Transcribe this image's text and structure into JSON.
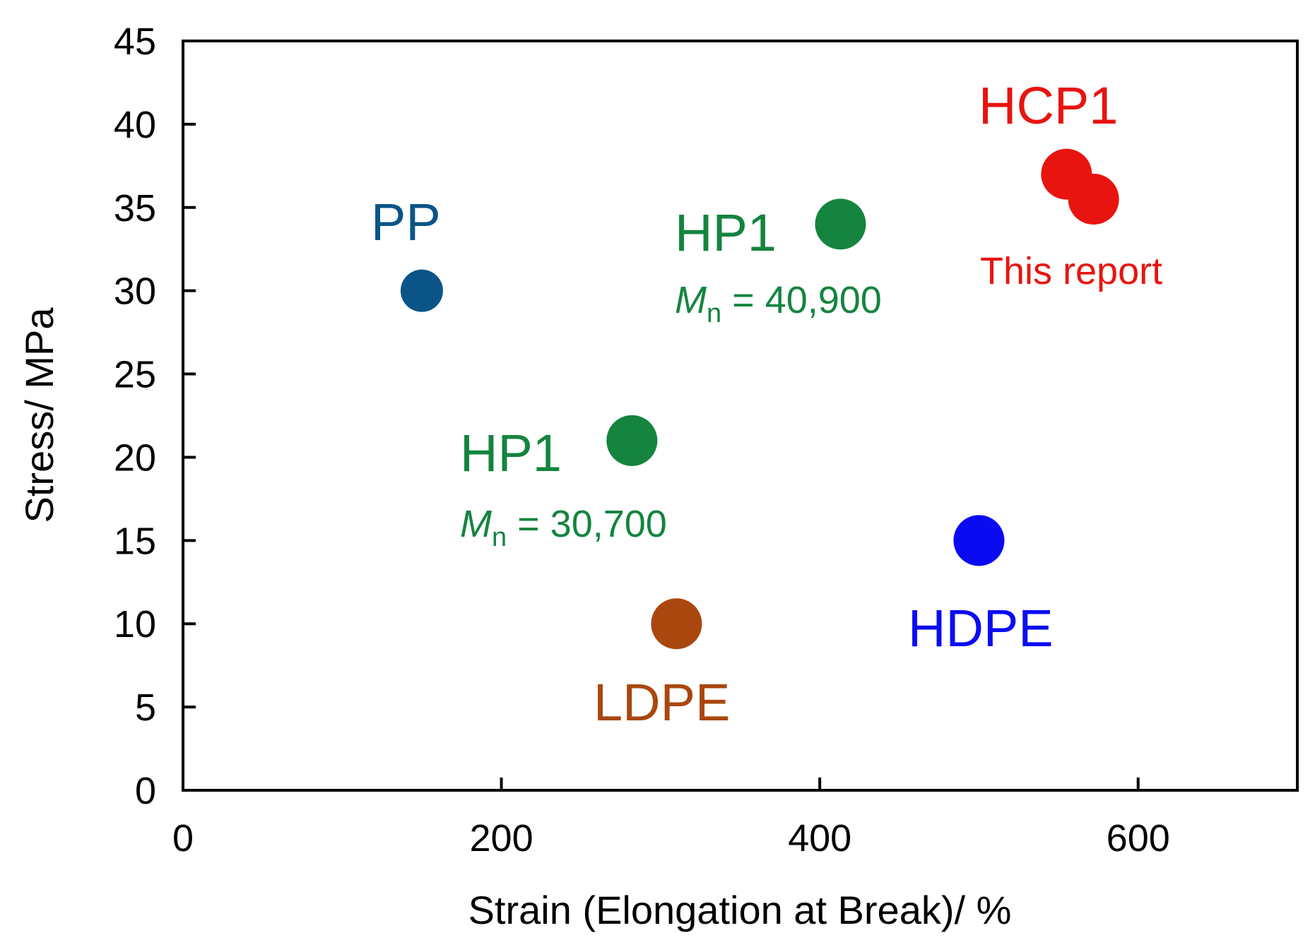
{
  "chart_data": {
    "type": "scatter",
    "title": "",
    "xlabel": "Strain (Elongation at Break)/ %",
    "ylabel": "Stress/ MPa",
    "xlim": [
      0,
      700
    ],
    "ylim": [
      0,
      45
    ],
    "xticks": [
      0,
      200,
      400,
      600
    ],
    "yticks": [
      0,
      5,
      10,
      15,
      20,
      25,
      30,
      35,
      40,
      45
    ],
    "grid": false,
    "points": [
      {
        "name": "PP",
        "x": 150,
        "y": 30,
        "color": "#0b5488"
      },
      {
        "name": "HP1 Mn = 30,700",
        "x": 282,
        "y": 21,
        "color": "#14843f"
      },
      {
        "name": "LDPE",
        "x": 310,
        "y": 10,
        "color": "#a9470e"
      },
      {
        "name": "HP1 Mn = 40,900",
        "x": 413,
        "y": 34,
        "color": "#14843f"
      },
      {
        "name": "HDPE",
        "x": 500,
        "y": 15,
        "color": "#0b0bf2"
      },
      {
        "name": "HCP1 a",
        "x": 555,
        "y": 37,
        "color": "#e8140f"
      },
      {
        "name": "HCP1 b",
        "x": 572,
        "y": 35.5,
        "color": "#e8140f"
      }
    ],
    "annotations": {
      "pp": {
        "text": "PP",
        "color": "#0b5488"
      },
      "hp1_low": {
        "text": "HP1",
        "mn_prefix": "M",
        "mn_sub": "n",
        "mn_value": " = 30,700",
        "color": "#14843f"
      },
      "hp1_high": {
        "text": "HP1",
        "mn_prefix": "M",
        "mn_sub": "n",
        "mn_value": " = 40,900",
        "color": "#14843f"
      },
      "ldpe": {
        "text": "LDPE",
        "color": "#a9470e"
      },
      "hdpe": {
        "text": "HDPE",
        "color": "#0b0bf2"
      },
      "hcp1": {
        "text": "HCP1",
        "color": "#e8140f"
      },
      "this_report": {
        "text": "This report",
        "color": "#e8140f"
      }
    }
  }
}
